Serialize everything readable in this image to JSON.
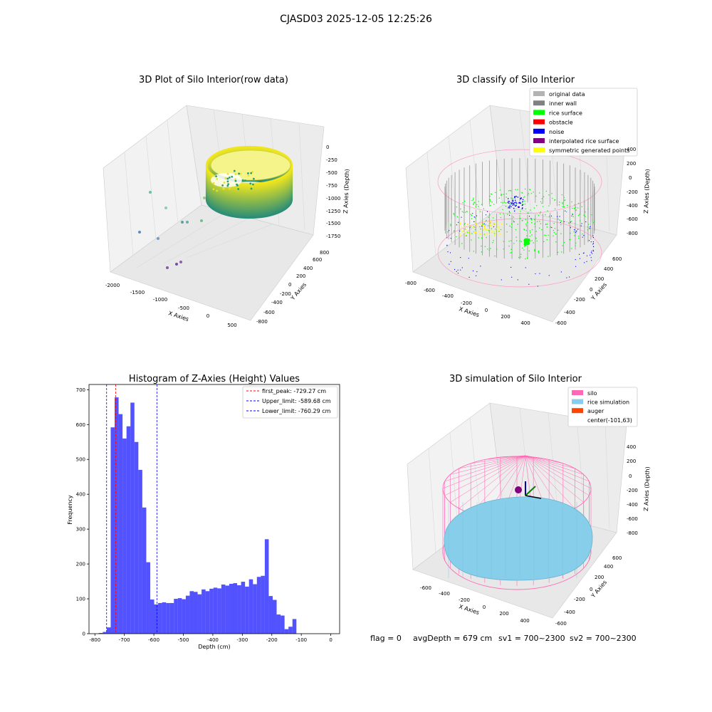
{
  "figure": {
    "suptitle": "CJASD03 2025-12-05 12:25:26"
  },
  "colors": {
    "original": "#b3b3b3",
    "inner_wall": "#808080",
    "rice_surface": "#00ff00",
    "obstacle": "#ff0000",
    "noise": "#0000ff",
    "interpolated": "#800080",
    "symmetric": "#ffff00",
    "silo": "#ff69b4",
    "rice_sim": "#87ceeb",
    "auger": "#ff4500",
    "hist_bar": "#0000ff"
  },
  "panel1": {
    "title": "3D Plot of Silo Interior(row data)",
    "xlabel": "X Axies",
    "ylabel": "Y Axies",
    "zlabel": "Z Axies (Depth)",
    "xticks": [
      "-2000",
      "-1500",
      "-1000",
      "-500",
      "0",
      "500"
    ],
    "yticks": [
      "-800",
      "-600",
      "-400",
      "-200",
      "0",
      "200",
      "400",
      "600",
      "800"
    ],
    "zticks": [
      "0",
      "-250",
      "-500",
      "-750",
      "-1000",
      "-1250",
      "-1500",
      "-1750"
    ]
  },
  "panel2": {
    "title": "3D classify of Silo Interior",
    "xlabel": "X Axies",
    "ylabel": "Y Axies",
    "zlabel": "Z Axies (Depth)",
    "xticks": [
      "-800",
      "-600",
      "-400",
      "-200",
      "0",
      "200",
      "400"
    ],
    "yticks": [
      "-600",
      "-400",
      "-200",
      "0",
      "200",
      "400",
      "600"
    ],
    "zticks": [
      "400",
      "200",
      "0",
      "-200",
      "-400",
      "-600",
      "-800"
    ],
    "legend": [
      {
        "label": "original data",
        "color": "#b3b3b3"
      },
      {
        "label": "inner wall",
        "color": "#808080"
      },
      {
        "label": "rice surface",
        "color": "#00ff00"
      },
      {
        "label": "obstacle",
        "color": "#ff0000"
      },
      {
        "label": "noise",
        "color": "#0000ff"
      },
      {
        "label": "interpolated rice surface",
        "color": "#800080"
      },
      {
        "label": "symmetric generated points",
        "color": "#ffff00"
      }
    ]
  },
  "panel4": {
    "title": "3D simulation of Silo Interior",
    "xlabel": "X Axies",
    "ylabel": "Y Axies",
    "zlabel": "Z Axies (Depth)",
    "xticks": [
      "-600",
      "-400",
      "-200",
      "0",
      "200",
      "400"
    ],
    "yticks": [
      "-600",
      "-400",
      "-200",
      "0",
      "200",
      "400",
      "600"
    ],
    "zticks": [
      "400",
      "200",
      "0",
      "-200",
      "-400",
      "-600",
      "-800"
    ],
    "legend": [
      {
        "label": "silo",
        "color": "#ff69b4"
      },
      {
        "label": "rice simulation",
        "color": "#87ceeb"
      },
      {
        "label": "auger",
        "color": "#ff4500"
      },
      {
        "label": "center(-101,63)",
        "color": ""
      }
    ]
  },
  "footer": {
    "flag": "flag = 0",
    "avg": "avgDepth = 679 cm",
    "sv1": "sv1 = 700~2300",
    "sv2": "sv2 = 700~2300"
  },
  "chart_data": [
    {
      "type": "bar",
      "title": "Histogram of Z-Axies (Height) Values",
      "xlabel": "Depth (cm)",
      "ylabel": "Frequency",
      "xlim": [
        -820,
        30
      ],
      "ylim": [
        0,
        715
      ],
      "xticks": [
        -800,
        -700,
        -600,
        -500,
        -400,
        -300,
        -200,
        -100,
        0
      ],
      "yticks": [
        0,
        100,
        200,
        300,
        400,
        500,
        600,
        700
      ],
      "bin_start": -800,
      "bin_width": 13.4,
      "values": [
        0,
        2,
        5,
        18,
        592,
        678,
        630,
        560,
        595,
        663,
        550,
        470,
        362,
        205,
        98,
        84,
        88,
        90,
        88,
        88,
        100,
        102,
        99,
        109,
        122,
        120,
        113,
        127,
        122,
        129,
        132,
        130,
        141,
        138,
        143,
        145,
        139,
        149,
        135,
        156,
        142,
        163,
        166,
        271,
        108,
        97,
        55,
        52,
        13,
        20,
        42
      ],
      "vlines": [
        {
          "label": "first_peak: -729.27 cm",
          "x": -729.27,
          "color": "#ff0000"
        },
        {
          "label": "Upper_limit: -589.68 cm",
          "x": -589.68,
          "color": "#0000ff"
        },
        {
          "label": "Lower_limit: -760.29 cm",
          "x": -760.29,
          "color": "#0000ff"
        }
      ],
      "legend_position": "top-right"
    }
  ]
}
